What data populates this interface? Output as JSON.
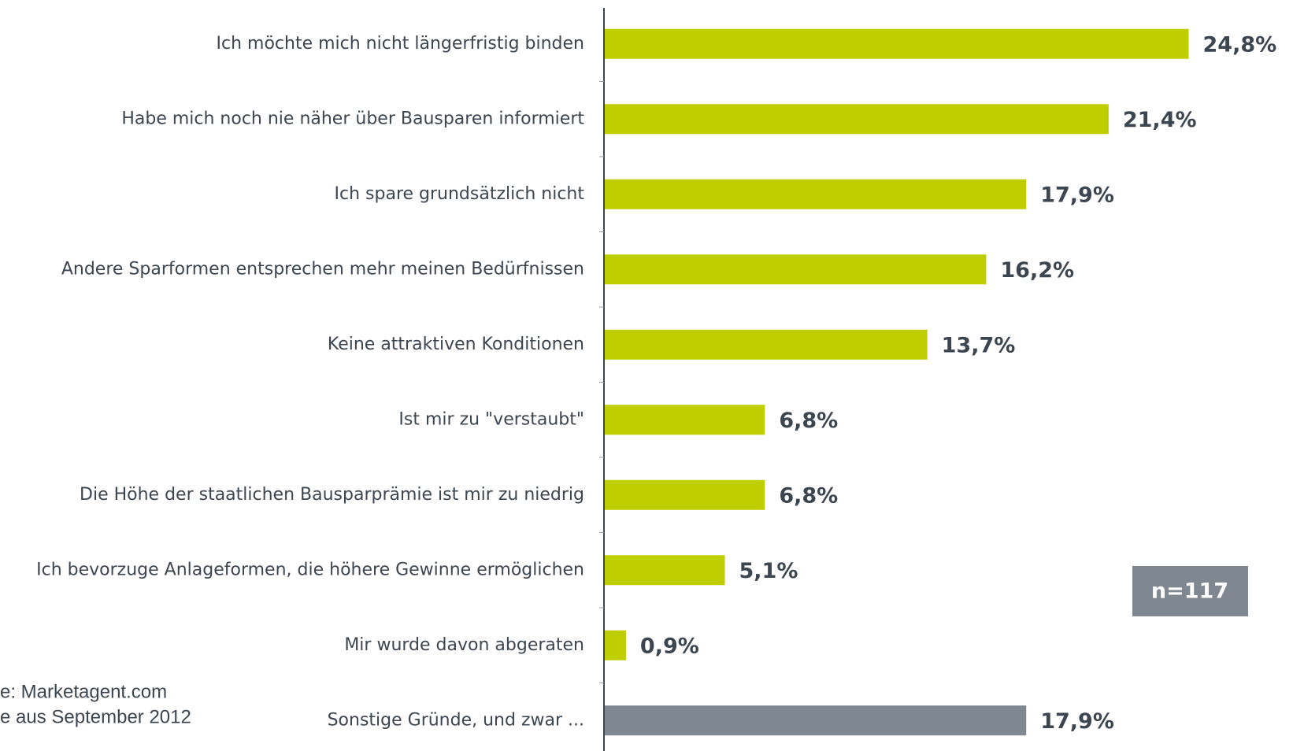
{
  "chart_data": {
    "type": "bar",
    "orientation": "horizontal",
    "categories": [
      "Ich möchte mich nicht längerfristig binden",
      "Habe mich noch nie näher über Bausparen informiert",
      "Ich spare grundsätzlich nicht",
      "Andere Sparformen entsprechen mehr meinen Bedürfnissen",
      "Keine attraktiven Konditionen",
      "Ist mir zu \"verstaubt\"",
      "Die Höhe der staatlichen Bausparprämie ist mir zu niedrig",
      "Ich bevorzuge Anlageformen, die höhere Gewinne ermöglichen",
      "Mir wurde davon abgeraten",
      "Sonstige Gründe, und zwar ..."
    ],
    "values": [
      24.8,
      21.4,
      17.9,
      16.2,
      13.7,
      6.8,
      6.8,
      5.1,
      0.9,
      17.9
    ],
    "value_labels": [
      "24,8%",
      "21,4%",
      "17,9%",
      "16,2%",
      "13,7%",
      "6,8%",
      "6,8%",
      "5,1%",
      "0,9%",
      "17,9%"
    ],
    "colors": [
      "#bfce00",
      "#bfce00",
      "#bfce00",
      "#bfce00",
      "#bfce00",
      "#bfce00",
      "#bfce00",
      "#bfce00",
      "#bfce00",
      "#7f8790"
    ],
    "annotation": "n=117",
    "source": [
      "e: Marketagent.com",
      "e aus September 2012"
    ]
  }
}
